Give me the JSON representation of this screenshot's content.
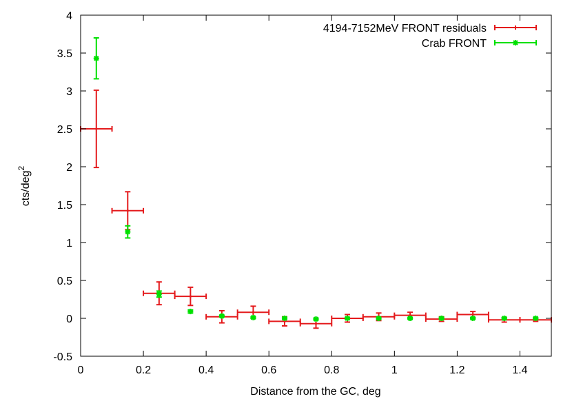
{
  "chart_data": {
    "type": "scatter",
    "xlabel": "Distance from the GC, deg",
    "ylabel": "cts/deg",
    "ylabel_sup": "2",
    "xlim": [
      0,
      1.5
    ],
    "ylim": [
      -0.5,
      4
    ],
    "xticks": [
      "0",
      "0.2",
      "0.4",
      "0.6",
      "0.8",
      "1",
      "1.2",
      "1.4"
    ],
    "xtick_values": [
      0,
      0.2,
      0.4,
      0.6,
      0.8,
      1.0,
      1.2,
      1.4
    ],
    "yticks": [
      "-0.5",
      "0",
      "0.5",
      "1",
      "1.5",
      "2",
      "2.5",
      "3",
      "3.5",
      "4"
    ],
    "ytick_values": [
      -0.5,
      0,
      0.5,
      1,
      1.5,
      2,
      2.5,
      3,
      3.5,
      4
    ],
    "grid": false,
    "legend_position": "top-right",
    "series": [
      {
        "name": "4194-7152MeV FRONT residuals",
        "color": "#e41a1c",
        "marker": "cross",
        "points": [
          {
            "x": 0.05,
            "y": 2.5,
            "xerr": 0.05,
            "yerr": 0.51
          },
          {
            "x": 0.15,
            "y": 1.42,
            "xerr": 0.05,
            "yerr": 0.25
          },
          {
            "x": 0.25,
            "y": 0.33,
            "xerr": 0.05,
            "yerr": 0.15
          },
          {
            "x": 0.35,
            "y": 0.29,
            "xerr": 0.05,
            "yerr": 0.12
          },
          {
            "x": 0.45,
            "y": 0.02,
            "xerr": 0.05,
            "yerr": 0.08
          },
          {
            "x": 0.55,
            "y": 0.08,
            "xerr": 0.05,
            "yerr": 0.08
          },
          {
            "x": 0.65,
            "y": -0.04,
            "xerr": 0.05,
            "yerr": 0.06
          },
          {
            "x": 0.75,
            "y": -0.07,
            "xerr": 0.05,
            "yerr": 0.06
          },
          {
            "x": 0.85,
            "y": 0.0,
            "xerr": 0.05,
            "yerr": 0.05
          },
          {
            "x": 0.95,
            "y": 0.02,
            "xerr": 0.05,
            "yerr": 0.05
          },
          {
            "x": 1.05,
            "y": 0.04,
            "xerr": 0.05,
            "yerr": 0.04
          },
          {
            "x": 1.15,
            "y": -0.01,
            "xerr": 0.05,
            "yerr": 0.03
          },
          {
            "x": 1.25,
            "y": 0.05,
            "xerr": 0.05,
            "yerr": 0.04
          },
          {
            "x": 1.35,
            "y": -0.02,
            "xerr": 0.05,
            "yerr": 0.03
          },
          {
            "x": 1.45,
            "y": -0.02,
            "xerr": 0.05,
            "yerr": 0.02
          }
        ]
      },
      {
        "name": "Crab FRONT",
        "color": "#00e000",
        "marker": "star",
        "points": [
          {
            "x": 0.05,
            "y": 3.43,
            "xerr": 0,
            "yerr": 0.27
          },
          {
            "x": 0.15,
            "y": 1.14,
            "xerr": 0,
            "yerr": 0.08
          },
          {
            "x": 0.25,
            "y": 0.32,
            "xerr": 0,
            "yerr": 0.04
          },
          {
            "x": 0.35,
            "y": 0.09,
            "xerr": 0,
            "yerr": 0.02
          },
          {
            "x": 0.45,
            "y": 0.03,
            "xerr": 0,
            "yerr": 0.01
          },
          {
            "x": 0.55,
            "y": 0.01,
            "xerr": 0,
            "yerr": 0.01
          },
          {
            "x": 0.65,
            "y": 0.0,
            "xerr": 0,
            "yerr": 0.01
          },
          {
            "x": 0.75,
            "y": -0.01,
            "xerr": 0,
            "yerr": 0.01
          },
          {
            "x": 0.85,
            "y": 0.0,
            "xerr": 0,
            "yerr": 0.01
          },
          {
            "x": 0.95,
            "y": 0.0,
            "xerr": 0,
            "yerr": 0.01
          },
          {
            "x": 1.05,
            "y": 0.0,
            "xerr": 0,
            "yerr": 0.01
          },
          {
            "x": 1.15,
            "y": 0.0,
            "xerr": 0,
            "yerr": 0.01
          },
          {
            "x": 1.25,
            "y": 0.0,
            "xerr": 0,
            "yerr": 0.01
          },
          {
            "x": 1.35,
            "y": 0.0,
            "xerr": 0,
            "yerr": 0.01
          },
          {
            "x": 1.45,
            "y": 0.0,
            "xerr": 0,
            "yerr": 0.01
          }
        ]
      }
    ]
  }
}
